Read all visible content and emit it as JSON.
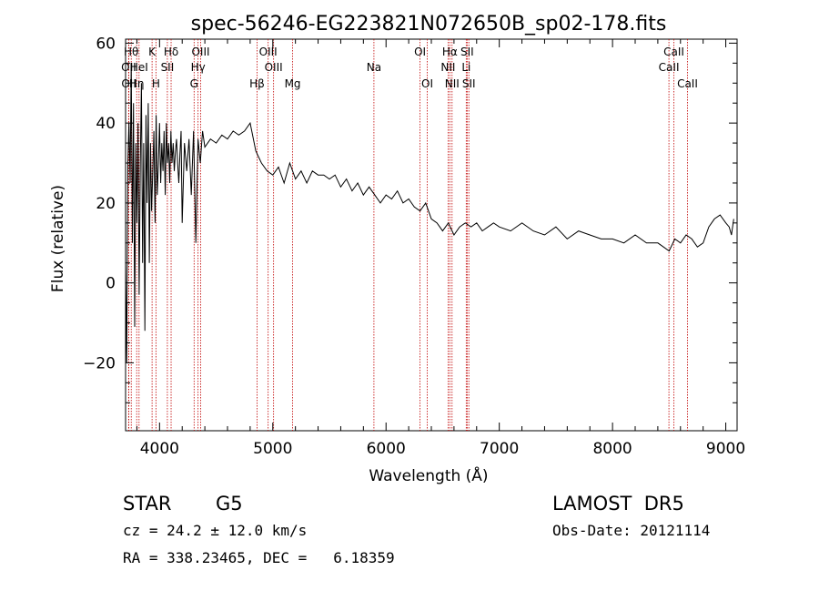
{
  "chart_data": {
    "type": "line",
    "title": "spec-56246-EG223821N072650B_sp02-178.fits",
    "xlabel": "Wavelength (Å)",
    "ylabel": "Flux (relative)",
    "xlim": [
      3700,
      9100
    ],
    "ylim": [
      -37,
      61
    ],
    "xticks": [
      4000,
      5000,
      6000,
      7000,
      8000,
      9000
    ],
    "yticks": [
      -20,
      0,
      20,
      40,
      60
    ],
    "grid": false,
    "line_color": "#000000",
    "marker_color": "#c00000",
    "series": [
      {
        "x": [
          3700,
          3710,
          3720,
          3730,
          3740,
          3750,
          3760,
          3770,
          3780,
          3790,
          3800,
          3810,
          3820,
          3830,
          3840,
          3850,
          3860,
          3870,
          3880,
          3890,
          3900,
          3910,
          3920,
          3930,
          3940,
          3950,
          3960,
          3970,
          3980,
          3990,
          4000,
          4010,
          4020,
          4030,
          4040,
          4050,
          4060,
          4070,
          4080,
          4090,
          4100,
          4110,
          4120,
          4130,
          4140,
          4150,
          4160,
          4170,
          4180,
          4190,
          4200,
          4220,
          4240,
          4260,
          4280,
          4300,
          4320,
          4340,
          4360,
          4380,
          4400,
          4450,
          4500,
          4550,
          4600,
          4650,
          4700,
          4750,
          4800,
          4850,
          4900,
          4950,
          5000,
          5050,
          5100,
          5150,
          5200,
          5250,
          5300,
          5350,
          5400,
          5450,
          5500,
          5550,
          5600,
          5650,
          5700,
          5750,
          5800,
          5850,
          5900,
          5950,
          6000,
          6050,
          6100,
          6150,
          6200,
          6250,
          6300,
          6350,
          6400,
          6450,
          6500,
          6550,
          6600,
          6650,
          6700,
          6750,
          6800,
          6850,
          6900,
          6950,
          7000,
          7100,
          7200,
          7300,
          7400,
          7500,
          7600,
          7700,
          7800,
          7900,
          8000,
          8100,
          8200,
          8300,
          8400,
          8450,
          8500,
          8550,
          8600,
          8650,
          8700,
          8750,
          8800,
          8850,
          8900,
          8950,
          9000,
          9030,
          9050,
          9070
        ],
        "y": [
          5,
          -20,
          30,
          40,
          25,
          55,
          10,
          45,
          -11,
          35,
          15,
          40,
          -3,
          30,
          50,
          5,
          35,
          -12,
          42,
          20,
          45,
          5,
          35,
          18,
          28,
          38,
          15,
          42,
          22,
          30,
          40,
          25,
          35,
          28,
          38,
          22,
          40,
          30,
          35,
          25,
          38,
          30,
          35,
          28,
          33,
          36,
          30,
          25,
          32,
          38,
          15,
          35,
          28,
          36,
          22,
          38,
          10,
          36,
          30,
          38,
          34,
          36,
          35,
          37,
          36,
          38,
          37,
          38,
          40,
          33,
          30,
          28,
          27,
          29,
          25,
          30,
          26,
          28,
          25,
          28,
          27,
          27,
          26,
          27,
          24,
          26,
          23,
          25,
          22,
          24,
          22,
          20,
          22,
          21,
          23,
          20,
          21,
          19,
          18,
          20,
          16,
          15,
          13,
          15,
          12,
          14,
          15,
          14,
          15,
          13,
          14,
          15,
          14,
          13,
          15,
          13,
          12,
          14,
          11,
          13,
          12,
          11,
          11,
          10,
          12,
          10,
          10,
          9,
          8,
          11,
          10,
          12,
          11,
          9,
          10,
          14,
          16,
          17,
          15,
          14,
          12,
          16
        ]
      }
    ],
    "line_markers": [
      {
        "name": "OII",
        "x": 3727,
        "row": 2
      },
      {
        "name": "OII",
        "x": 3729,
        "row": 3
      },
      {
        "name": "Hθ",
        "x": 3750,
        "row": 1
      },
      {
        "name": "Hη",
        "x": 3798,
        "row": 3
      },
      {
        "name": "HeI",
        "x": 3819,
        "row": 2
      },
      {
        "name": "K",
        "x": 3934,
        "row": 1
      },
      {
        "name": "SII",
        "x": 4069,
        "row": 2
      },
      {
        "name": "H",
        "x": 3968,
        "row": 3
      },
      {
        "name": "Hδ",
        "x": 4102,
        "row": 1
      },
      {
        "name": "OIII",
        "x": 4363,
        "row": 1
      },
      {
        "name": "Hγ",
        "x": 4340,
        "row": 2
      },
      {
        "name": "G",
        "x": 4305,
        "row": 3
      },
      {
        "name": "OIII",
        "x": 4959,
        "row": 1
      },
      {
        "name": "OIII",
        "x": 5007,
        "row": 2
      },
      {
        "name": "Hβ",
        "x": 4861,
        "row": 3
      },
      {
        "name": "Mg",
        "x": 5175,
        "row": 3
      },
      {
        "name": "Na",
        "x": 5893,
        "row": 2
      },
      {
        "name": "OI",
        "x": 6300,
        "row": 1
      },
      {
        "name": "OI",
        "x": 6364,
        "row": 3
      },
      {
        "name": "Hα",
        "x": 6563,
        "row": 1
      },
      {
        "name": "SII",
        "x": 6716,
        "row": 1
      },
      {
        "name": "NII",
        "x": 6548,
        "row": 2
      },
      {
        "name": "Li",
        "x": 6708,
        "row": 2
      },
      {
        "name": "NII",
        "x": 6583,
        "row": 3
      },
      {
        "name": "SII",
        "x": 6731,
        "row": 3
      },
      {
        "name": "CaII",
        "x": 8542,
        "row": 1
      },
      {
        "name": "CaII",
        "x": 8498,
        "row": 2
      },
      {
        "name": "CaII",
        "x": 8662,
        "row": 3
      }
    ]
  },
  "info": {
    "object_class": "STAR",
    "subclass": "G5",
    "cz": "cz = 24.2 ± 12.0 km/s",
    "coords": "RA = 338.23465, DEC =   6.18359",
    "survey": "LAMOST  DR5",
    "obs_date": "Obs-Date: 20121114"
  }
}
